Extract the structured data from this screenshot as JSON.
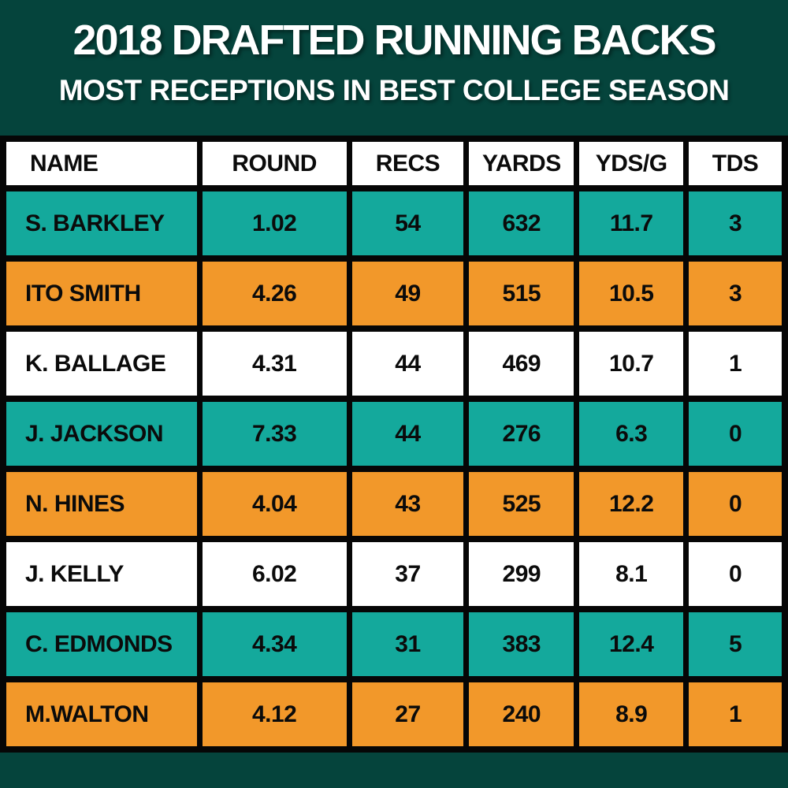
{
  "background_color": "#05443C",
  "banner": {
    "title": "2018 DRAFTED RUNNING BACKS",
    "subtitle": "MOST RECEPTIONS IN BEST COLLEGE SEASON"
  },
  "colors": {
    "background": "#05443C",
    "table_border": "#060606",
    "teal_row": "#14A99C",
    "orange_row": "#F2982A",
    "white_row": "#FFFFFF",
    "cell_text": "#0B0B0B",
    "banner_text": "#FFFFFF"
  },
  "chart_data": {
    "type": "table",
    "title": "2018 DRAFTED RUNNING BACKS",
    "subtitle": "MOST RECEPTIONS IN BEST COLLEGE SEASON",
    "columns": [
      "NAME",
      "ROUND",
      "RECS",
      "YARDS",
      "YDS/G",
      "TDS"
    ],
    "row_color_cycle": [
      "teal",
      "orange",
      "white"
    ],
    "rows": [
      {
        "name": "S. BARKLEY",
        "round": "1.02",
        "recs": "54",
        "yards": "632",
        "ydsg": "11.7",
        "tds": "3",
        "row_color": "teal"
      },
      {
        "name": "ITO SMITH",
        "round": "4.26",
        "recs": "49",
        "yards": "515",
        "ydsg": "10.5",
        "tds": "3",
        "row_color": "orange"
      },
      {
        "name": "K. BALLAGE",
        "round": "4.31",
        "recs": "44",
        "yards": "469",
        "ydsg": "10.7",
        "tds": "1",
        "row_color": "white"
      },
      {
        "name": "J. JACKSON",
        "round": "7.33",
        "recs": "44",
        "yards": "276",
        "ydsg": "6.3",
        "tds": "0",
        "row_color": "teal"
      },
      {
        "name": "N. HINES",
        "round": "4.04",
        "recs": "43",
        "yards": "525",
        "ydsg": "12.2",
        "tds": "0",
        "row_color": "orange"
      },
      {
        "name": "J. KELLY",
        "round": "6.02",
        "recs": "37",
        "yards": "299",
        "ydsg": "8.1",
        "tds": "0",
        "row_color": "white"
      },
      {
        "name": "C. EDMONDS",
        "round": "4.34",
        "recs": "31",
        "yards": "383",
        "ydsg": "12.4",
        "tds": "5",
        "row_color": "teal"
      },
      {
        "name": "M.WALTON",
        "round": "4.12",
        "recs": "27",
        "yards": "240",
        "ydsg": "8.9",
        "tds": "1",
        "row_color": "orange"
      }
    ]
  }
}
